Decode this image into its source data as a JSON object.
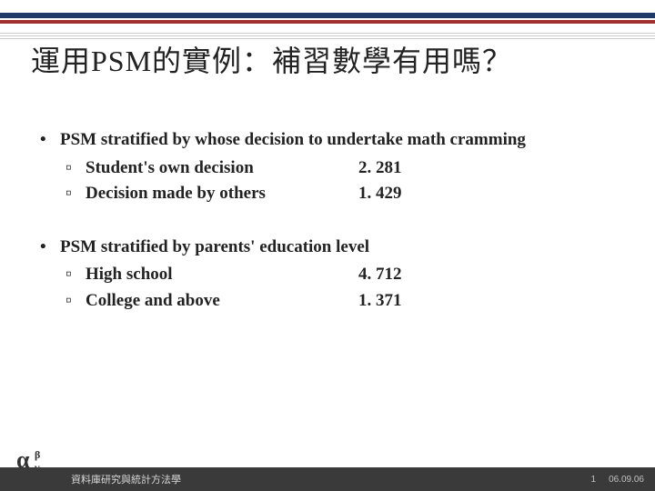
{
  "title": "運用PSM的實例：補習數學有用嗎？",
  "groups": [
    {
      "heading": "PSM stratified by whose decision to undertake math cramming",
      "items": [
        {
          "label": "Student's own decision",
          "value": "2. 281"
        },
        {
          "label": "Decision made by others",
          "value": "1. 429"
        }
      ]
    },
    {
      "heading": "PSM stratified by parents' education level",
      "items": [
        {
          "label": "High school",
          "value": "4. 712"
        },
        {
          "label": "College and above",
          "value": "1. 371"
        }
      ]
    }
  ],
  "footer": {
    "text": "資料庫研究與統計方法學",
    "page": "1",
    "date": "06.09.06"
  },
  "colors": {
    "navy": "#1f3a68",
    "red": "#a03030",
    "footer_bg": "#3a3a3a",
    "text": "#222222"
  }
}
